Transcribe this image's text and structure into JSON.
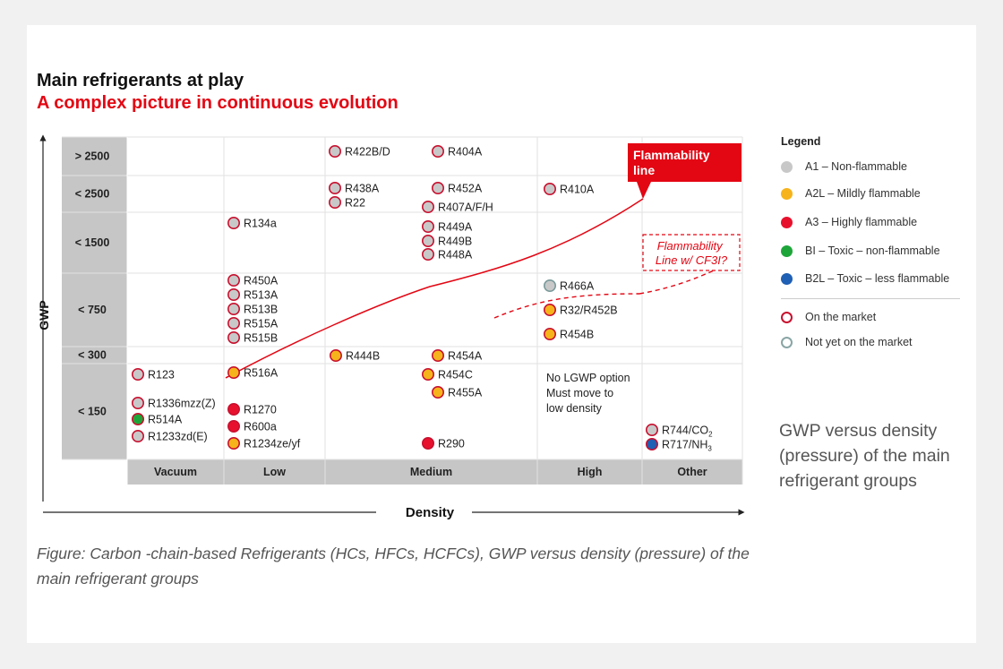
{
  "header": {
    "title": "Main refrigerants at play",
    "subtitle": "A complex picture in continuous evolution"
  },
  "colors": {
    "accent_red": "#e30613",
    "a1": "#c8c8c8",
    "a2l": "#f6b31b",
    "a3": "#e8112d",
    "bi": "#1ea53a",
    "b2l": "#1f5fb4",
    "grid_gray": "#c6c6c6"
  },
  "legend": {
    "title": "Legend",
    "items": [
      {
        "label": "A1 – Non-flammable",
        "color": "#c8c8c8"
      },
      {
        "label": "A2L –  Mildly flammable",
        "color": "#f6b31b"
      },
      {
        "label": "A3 –  Highly flammable",
        "color": "#e8112d"
      },
      {
        "label": "BI – Toxic – non-flammable",
        "color": "#1ea53a"
      },
      {
        "label": "B2L – Toxic – less flammable",
        "color": "#1f5fb4"
      }
    ],
    "market": [
      {
        "label": "On the market",
        "ring": "#c8102e"
      },
      {
        "label": "Not yet on the market",
        "ring": "#8aa5a5"
      }
    ]
  },
  "side_note": "GWP versus density (pressure) of the main refrigerant groups",
  "caption": "Figure: Carbon -chain-based Refrigerants (HCs, HFCs, HCFCs), GWP versus density (pressure) of the main refrigerant groups",
  "chart_data": {
    "type": "scatter",
    "title": "Main refrigerants at play",
    "xlabel": "Density",
    "ylabel": "GWP",
    "x_categories": [
      "Vacuum",
      "Low",
      "Medium",
      "High",
      "Other"
    ],
    "y_categories": [
      "> 2500",
      "< 2500",
      "< 1500",
      "< 750",
      "< 300",
      "< 150"
    ],
    "annotations": {
      "flammability_line": "Flammability line",
      "cf3i_line": "Flammability Line w/ CF3I?",
      "no_lgwp_note": "No LGWP option Must move to low density",
      "no_lgwp_lines": [
        "No LGWP option",
        "Must move to",
        "low density"
      ]
    },
    "points": [
      {
        "label": "R422B/D",
        "density": "Medium",
        "gwp": "> 2500",
        "class": "A1",
        "market": "on"
      },
      {
        "label": "R404A",
        "density": "Medium",
        "gwp": "> 2500",
        "class": "A1",
        "market": "on"
      },
      {
        "label": "R438A",
        "density": "Medium",
        "gwp": "< 2500",
        "class": "A1",
        "market": "on"
      },
      {
        "label": "R22",
        "density": "Medium",
        "gwp": "< 2500",
        "class": "A1",
        "market": "on"
      },
      {
        "label": "R452A",
        "density": "Medium",
        "gwp": "< 2500",
        "class": "A1",
        "market": "on"
      },
      {
        "label": "R407A/F/H",
        "density": "Medium",
        "gwp": "< 2500",
        "class": "A1",
        "market": "on"
      },
      {
        "label": "R410A",
        "density": "High",
        "gwp": "< 2500",
        "class": "A1",
        "market": "on"
      },
      {
        "label": "R134a",
        "density": "Low",
        "gwp": "< 1500",
        "class": "A1",
        "market": "on"
      },
      {
        "label": "R449A",
        "density": "Medium",
        "gwp": "< 1500",
        "class": "A1",
        "market": "on"
      },
      {
        "label": "R449B",
        "density": "Medium",
        "gwp": "< 1500",
        "class": "A1",
        "market": "on"
      },
      {
        "label": "R448A",
        "density": "Medium",
        "gwp": "< 1500",
        "class": "A1",
        "market": "on"
      },
      {
        "label": "R450A",
        "density": "Low",
        "gwp": "< 750",
        "class": "A1",
        "market": "on"
      },
      {
        "label": "R513A",
        "density": "Low",
        "gwp": "< 750",
        "class": "A1",
        "market": "on"
      },
      {
        "label": "R513B",
        "density": "Low",
        "gwp": "< 750",
        "class": "A1",
        "market": "on"
      },
      {
        "label": "R515A",
        "density": "Low",
        "gwp": "< 750",
        "class": "A1",
        "market": "on"
      },
      {
        "label": "R515B",
        "density": "Low",
        "gwp": "< 750",
        "class": "A1",
        "market": "on"
      },
      {
        "label": "R466A",
        "density": "High",
        "gwp": "< 750",
        "class": "A1",
        "market": "not_yet"
      },
      {
        "label": "R32/R452B",
        "density": "High",
        "gwp": "< 750",
        "class": "A2L",
        "market": "on"
      },
      {
        "label": "R454B",
        "density": "High",
        "gwp": "< 750",
        "class": "A2L",
        "market": "on"
      },
      {
        "label": "R444B",
        "density": "Medium",
        "gwp": "< 300",
        "class": "A2L",
        "market": "on"
      },
      {
        "label": "R454A",
        "density": "Medium",
        "gwp": "< 300",
        "class": "A2L",
        "market": "on"
      },
      {
        "label": "R123",
        "density": "Vacuum",
        "gwp": "< 150",
        "class": "A1",
        "market": "on"
      },
      {
        "label": "R1336mzz(Z)",
        "density": "Vacuum",
        "gwp": "< 150",
        "class": "A1",
        "market": "on"
      },
      {
        "label": "R514A",
        "density": "Vacuum",
        "gwp": "< 150",
        "class": "BI",
        "market": "on"
      },
      {
        "label": "R1233zd(E)",
        "density": "Vacuum",
        "gwp": "< 150",
        "class": "A1",
        "market": "on"
      },
      {
        "label": "R516A",
        "density": "Low",
        "gwp": "< 150",
        "class": "A2L",
        "market": "on"
      },
      {
        "label": "R1270",
        "density": "Low",
        "gwp": "< 150",
        "class": "A3",
        "market": "on"
      },
      {
        "label": "R600a",
        "density": "Low",
        "gwp": "< 150",
        "class": "A3",
        "market": "on"
      },
      {
        "label": "R1234ze/yf",
        "density": "Low",
        "gwp": "< 150",
        "class": "A2L",
        "market": "on"
      },
      {
        "label": "R454C",
        "density": "Medium",
        "gwp": "< 150",
        "class": "A2L",
        "market": "on"
      },
      {
        "label": "R455A",
        "density": "Medium",
        "gwp": "< 150",
        "class": "A2L",
        "market": "on"
      },
      {
        "label": "R290",
        "density": "Medium",
        "gwp": "< 150",
        "class": "A3",
        "market": "on"
      },
      {
        "label": "R744/CO",
        "sub": "2",
        "density": "Other",
        "gwp": "< 150",
        "class": "A1",
        "market": "on"
      },
      {
        "label": "R717/NH",
        "sub": "3",
        "density": "Other",
        "gwp": "< 150",
        "class": "B2L",
        "market": "on"
      }
    ]
  }
}
